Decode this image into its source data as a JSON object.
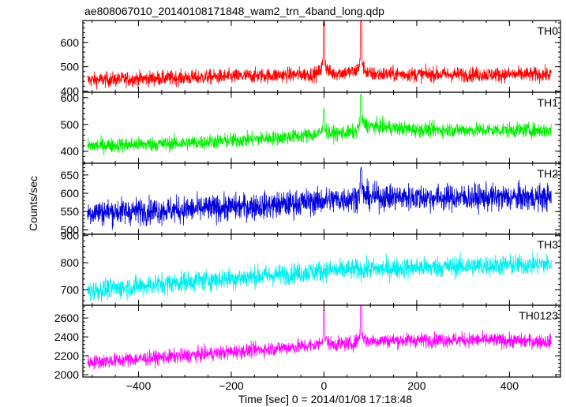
{
  "chart_data": {
    "type": "line",
    "title": "ae808067010_20140108171848_wam2_trn_4band_long.qdp",
    "xlabel": "Time [sec] 0 = 2014/01/08 17:18:48",
    "ylabel": "Counts/sec",
    "xlim": [
      -520,
      510
    ],
    "x_ticks": [
      -400,
      -200,
      0,
      200,
      400
    ],
    "x_tick_labels": [
      "−400",
      "−200",
      "0",
      "200",
      "400"
    ],
    "x_data_range": [
      -510,
      490
    ],
    "panels": [
      {
        "name": "TH0",
        "color": "#ff0000",
        "ylim": [
          395,
          690
        ],
        "y_ticks": [
          400,
          500,
          600
        ],
        "series": {
          "trend": [
            [
              -510,
              445
            ],
            [
              -300,
              455
            ],
            [
              -100,
              465
            ],
            [
              -10,
              470
            ],
            [
              60,
              478
            ],
            [
              100,
              470
            ],
            [
              300,
              468
            ],
            [
              490,
              468
            ]
          ],
          "noise": 22,
          "peaks": [
            [
              0,
              690
            ],
            [
              80,
              690
            ]
          ]
        }
      },
      {
        "name": "TH1",
        "color": "#00ee00",
        "ylim": [
          355,
          620
        ],
        "y_ticks": [
          400,
          500,
          600
        ],
        "series": {
          "trend": [
            [
              -510,
              420
            ],
            [
              -300,
              430
            ],
            [
              -100,
              450
            ],
            [
              0,
              465
            ],
            [
              70,
              470
            ],
            [
              90,
              495
            ],
            [
              200,
              480
            ],
            [
              490,
              478
            ]
          ],
          "noise": 20,
          "peaks": [
            [
              0,
              560
            ],
            [
              80,
              615
            ]
          ]
        }
      },
      {
        "name": "TH2",
        "color": "#0000dd",
        "ylim": [
          488,
          682
        ],
        "y_ticks": [
          500,
          550,
          600,
          650
        ],
        "series": {
          "trend": [
            [
              -510,
              548
            ],
            [
              -300,
              555
            ],
            [
              -100,
              568
            ],
            [
              0,
              580
            ],
            [
              100,
              590
            ],
            [
              300,
              588
            ],
            [
              490,
              588
            ]
          ],
          "noise": 26,
          "peaks": [
            [
              80,
              672
            ]
          ]
        }
      },
      {
        "name": "TH3",
        "color": "#00eeee",
        "ylim": [
          643,
          905
        ],
        "y_ticks": [
          700,
          800,
          900
        ],
        "series": {
          "trend": [
            [
              -510,
              695
            ],
            [
              -300,
              730
            ],
            [
              -100,
              755
            ],
            [
              0,
              770
            ],
            [
              200,
              782
            ],
            [
              490,
              795
            ]
          ],
          "noise": 28,
          "peaks": []
        }
      },
      {
        "name": "TH0123",
        "color": "#ff00ff",
        "ylim": [
          1975,
          2735
        ],
        "y_ticks": [
          2000,
          2200,
          2400,
          2600
        ],
        "series": {
          "trend": [
            [
              -510,
              2130
            ],
            [
              -300,
              2200
            ],
            [
              -100,
              2280
            ],
            [
              0,
              2320
            ],
            [
              60,
              2330
            ],
            [
              100,
              2360
            ],
            [
              300,
              2370
            ],
            [
              490,
              2350
            ]
          ],
          "noise": 55,
          "peaks": [
            [
              0,
              2690
            ],
            [
              80,
              2730
            ]
          ]
        }
      }
    ]
  }
}
